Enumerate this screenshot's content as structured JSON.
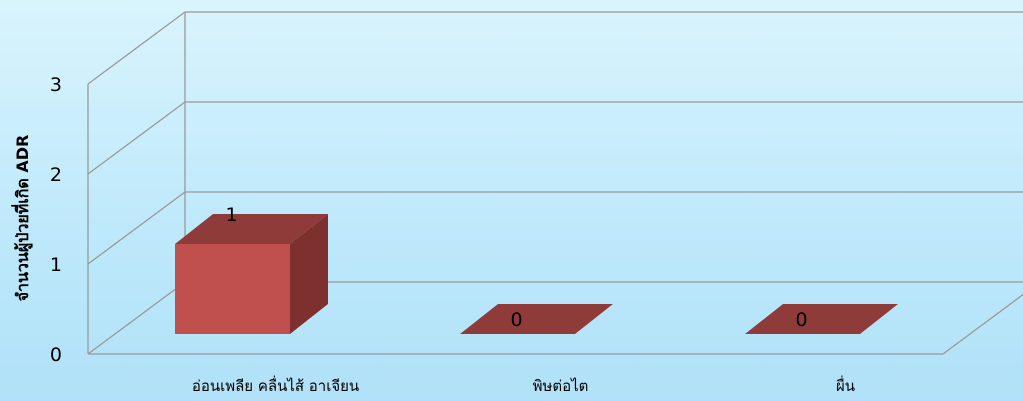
{
  "chart_data": {
    "type": "bar",
    "title": "",
    "xlabel": "",
    "ylabel": "จำนวนผู้ป่วยที่เกิด ADR",
    "categories": [
      "อ่อนเพลีย คลื่นไส้ อาเจียน",
      "พิษต่อไต",
      "ผื่น"
    ],
    "values": [
      1,
      0,
      0
    ],
    "ylim": [
      0,
      3
    ],
    "yticks": [
      "0",
      "1",
      "2",
      "3"
    ],
    "data_labels": [
      "1",
      "0",
      "0"
    ],
    "grid": true,
    "legend": "none",
    "colors": {
      "bar_front": "#c0504d",
      "bar_top": "#8e3b39",
      "bar_side": "#7d302e",
      "grid": "#999999"
    }
  }
}
